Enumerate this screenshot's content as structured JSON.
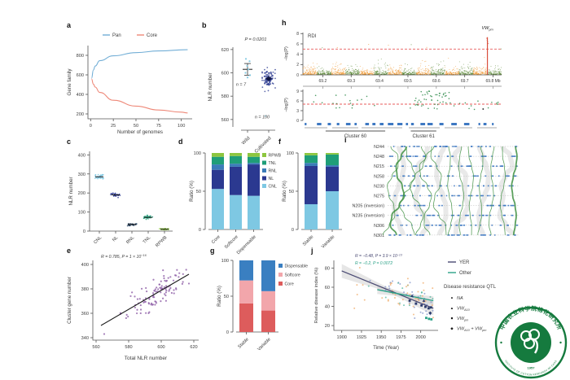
{
  "panels": {
    "a": "a",
    "b": "b",
    "c": "c",
    "d": "d",
    "e": "e",
    "f": "f",
    "g": "g",
    "h": "h",
    "i": "i",
    "j": "j"
  },
  "chart_data": [
    {
      "panel": "a",
      "type": "line",
      "xlabel": "Number of genomes",
      "ylabel": "Gene family",
      "xticks": [
        0,
        25,
        50,
        75,
        100
      ],
      "yticks": [
        200,
        400,
        600,
        800
      ],
      "xlim": [
        -3,
        112
      ],
      "ylim": [
        150,
        900
      ],
      "series": [
        {
          "name": "Pan",
          "color": "#72aed6",
          "x": [
            1,
            3,
            5,
            10,
            25,
            50,
            75,
            107
          ],
          "y": [
            565,
            650,
            690,
            745,
            795,
            828,
            845,
            858
          ]
        },
        {
          "name": "Core",
          "color": "#ee8878",
          "x": [
            1,
            3,
            5,
            10,
            25,
            50,
            75,
            100,
            107
          ],
          "y": [
            558,
            505,
            475,
            420,
            340,
            280,
            240,
            218,
            210
          ]
        }
      ]
    },
    {
      "panel": "b",
      "type": "scatter-groups",
      "ylabel": "NLR number",
      "ylim": [
        555,
        622
      ],
      "yticks": [
        560,
        580,
        600,
        620
      ],
      "p_label": "P = 0.0201",
      "groups": [
        {
          "label": "Wild",
          "n_label": "n = 7",
          "color": "#7ec8e3",
          "points": [
            612,
            610,
            606,
            603,
            600,
            598,
            596
          ],
          "mean": 603,
          "ci": [
            598,
            608
          ]
        },
        {
          "label": "Cultivated",
          "n_label": "n = 100",
          "color": "#2b3990",
          "n": 100,
          "mean": 595,
          "sd": 4.3,
          "outlier": 563
        }
      ]
    },
    {
      "panel": "c",
      "type": "dot-clusters",
      "ylabel": "NLR number",
      "ylim": [
        0,
        410
      ],
      "yticks": [
        0,
        100,
        200,
        300,
        400
      ],
      "categories": [
        "CNL",
        "NL",
        "RNL",
        "TNL",
        "RPWB"
      ],
      "centers": [
        285,
        190,
        35,
        72,
        10
      ],
      "spreads": [
        6,
        5,
        4,
        5,
        2
      ],
      "colors": [
        "#7ec8e3",
        "#2b3990",
        "#24415f",
        "#1f9e78",
        "#8dc63f"
      ]
    },
    {
      "panel": "d",
      "type": "stacked-bar",
      "ylabel": "Ratio (%)",
      "yticks": [
        0,
        50,
        100
      ],
      "categories": [
        "Core",
        "Softcore",
        "Dispensable"
      ],
      "series": [
        {
          "name": "CNL",
          "color": "#7ec8e3",
          "values": [
            53,
            45,
            44
          ]
        },
        {
          "name": "NL",
          "color": "#2b3990",
          "values": [
            25,
            37,
            41
          ]
        },
        {
          "name": "RNL",
          "color": "#3b7cb8",
          "values": [
            7,
            4,
            2
          ]
        },
        {
          "name": "TNL",
          "color": "#1f9e78",
          "values": [
            10,
            10,
            8
          ]
        },
        {
          "name": "RPWB",
          "color": "#8dc63f",
          "values": [
            5,
            4,
            5
          ]
        }
      ],
      "legend_order": [
        "RPWB",
        "TNL",
        "RNL",
        "NL",
        "CNL"
      ]
    },
    {
      "panel": "f",
      "type": "stacked-bar",
      "ylabel": "Ratio (%)",
      "yticks": [
        0,
        50,
        100
      ],
      "categories": [
        "Stable",
        "Variable"
      ],
      "series": [
        {
          "name": "CNL",
          "color": "#7ec8e3",
          "values": [
            33,
            50
          ]
        },
        {
          "name": "NL",
          "color": "#2b3990",
          "values": [
            50,
            32
          ]
        },
        {
          "name": "RNL",
          "color": "#3b7cb8",
          "values": [
            4,
            2
          ]
        },
        {
          "name": "TNL",
          "color": "#1f9e78",
          "values": [
            10,
            14
          ]
        },
        {
          "name": "RPWB",
          "color": "#8dc63f",
          "values": [
            3,
            2
          ]
        }
      ]
    },
    {
      "panel": "e",
      "type": "scatter-regression",
      "xlabel": "Total NLR number",
      "ylabel": "Cluster gene number",
      "xlim": [
        558,
        622
      ],
      "ylim": [
        338,
        402
      ],
      "xticks": [
        560,
        580,
        600,
        620
      ],
      "yticks": [
        340,
        360,
        380,
        400
      ],
      "annotation": {
        "text": "R = 0.785, P = 1 × 10",
        "exp": "−16"
      },
      "color": "#8f5fa8",
      "n": 105,
      "line": {
        "x1": 563,
        "y1": 350,
        "x2": 617,
        "y2": 392
      },
      "noise_sd": 6.2,
      "outlier": [
        565,
        343
      ]
    },
    {
      "panel": "g",
      "type": "stacked-bar",
      "ylabel": "Ratio (%)",
      "yticks": [
        0,
        50,
        100
      ],
      "categories": [
        "Stable",
        "Variable"
      ],
      "series": [
        {
          "name": "Core",
          "color": "#dd5c5c",
          "values": [
            40,
            30
          ]
        },
        {
          "name": "Softcore",
          "color": "#f2a6ab",
          "values": [
            32,
            27
          ]
        },
        {
          "name": "Dispensable",
          "color": "#3a7fc1",
          "values": [
            28,
            43
          ]
        }
      ],
      "legend_order": [
        "Dispensable",
        "Softcore",
        "Core"
      ]
    },
    {
      "panel": "h",
      "type": "manhattan",
      "top": {
        "label": "RDI",
        "ylabel": "−log(P)",
        "yticks": [
          0,
          2,
          4,
          6,
          8
        ],
        "ylim": [
          0,
          8.2
        ],
        "threshold": 5,
        "xticks": [
          69.2,
          69.3,
          69.4,
          69.5,
          69.6,
          69.7,
          69.8
        ],
        "x_unit": "Mb",
        "xlim": [
          69.13,
          69.83
        ],
        "colors": [
          "#ef9226",
          "#55842e"
        ],
        "n_blocks": 14,
        "peak": {
          "x": 69.78,
          "height": 7.3,
          "color": "#d94f3d",
          "label_main": "VW",
          "label_sub": "pm"
        }
      },
      "bottom": {
        "ylabel": "−log(P)",
        "yticks": [
          0,
          3,
          6,
          9
        ],
        "ylim": [
          0,
          9.5
        ],
        "threshold": 5,
        "color": "#2e8b4a",
        "gene_color": "#3d78c2",
        "clusters": [
          {
            "label": "Cluster 60",
            "from": 69.21,
            "to": 69.42
          },
          {
            "label": "Cluster 61",
            "from": 69.51,
            "to": 69.6
          }
        ]
      }
    },
    {
      "panel": "i",
      "type": "synteny",
      "rows": [
        "N244",
        "N248",
        "N215",
        "N258",
        "N230",
        "N275",
        "N205 (inversion)",
        "N235 (inversion)",
        "N306",
        "N301"
      ],
      "track_color": "#3f9142",
      "gene_color": "#3d78c2",
      "ribbon_color": "#cfcfcf"
    },
    {
      "panel": "j",
      "type": "scatter-trends",
      "xlabel": "Time (Year)",
      "ylabel": "Relative disease index (%)",
      "xlim": [
        1890,
        2022
      ],
      "ylim": [
        15,
        88
      ],
      "xticks": [
        1900,
        1925,
        1950,
        1975,
        2000
      ],
      "yticks": [
        20,
        40,
        60,
        80
      ],
      "trends": [
        {
          "name": "YER",
          "color": "#4a4a73",
          "x1": 1900,
          "y1": 77,
          "x2": 2016,
          "y2": 38,
          "annotation": {
            "text": "R = −0.48, P = 3.9 × 10",
            "exp": "−13"
          }
        },
        {
          "name": "Other",
          "color": "#2aa187",
          "x1": 1945,
          "y1": 57.5,
          "x2": 2016,
          "y2": 46,
          "annotation": {
            "text": "R = −0.2, P = 0.0072",
            "exp": ""
          }
        }
      ],
      "point_colors": [
        "#f0a661",
        "#7b8fc7",
        "#49b39a"
      ],
      "legend": {
        "qtl_header": "Disease resistance QTL",
        "qtl": [
          {
            "glyph": "●",
            "main": "NA",
            "sub": "",
            "plus": "",
            "main2": "",
            "sub2": ""
          },
          {
            "glyph": "▲",
            "main": "VW",
            "sub": "A10",
            "plus": "",
            "main2": "",
            "sub2": ""
          },
          {
            "glyph": "■",
            "main": "VW",
            "sub": "pm",
            "plus": "",
            "main2": "",
            "sub2": ""
          },
          {
            "glyph": "◆",
            "main": "VW",
            "sub": "A10",
            "plus": " + ",
            "main2": "VW",
            "sub2": "pm"
          }
        ]
      },
      "markers": {
        "square_navy": [
          [
            1986,
            46
          ],
          [
            1994,
            43
          ],
          [
            2001,
            41
          ],
          [
            2006,
            39.5
          ],
          [
            2010,
            38
          ],
          [
            2013,
            39
          ]
        ],
        "square_teal": [
          [
            2007,
            28
          ],
          [
            2010.5,
            27
          ],
          [
            2013.5,
            26.5
          ]
        ],
        "triangle_navy": [
          [
            1989,
            51
          ],
          [
            2004,
            46
          ]
        ],
        "diamond_navy": [
          [
            2012,
            33
          ]
        ]
      }
    }
  ],
  "watermark": {
    "ring_text_top": "中国农业科学院棉花研究所",
    "ring_text_bottom": "INSTITUTE OF COTTON RESEARCH OF CAAS",
    "year": "1957",
    "color": "#157a3e"
  }
}
